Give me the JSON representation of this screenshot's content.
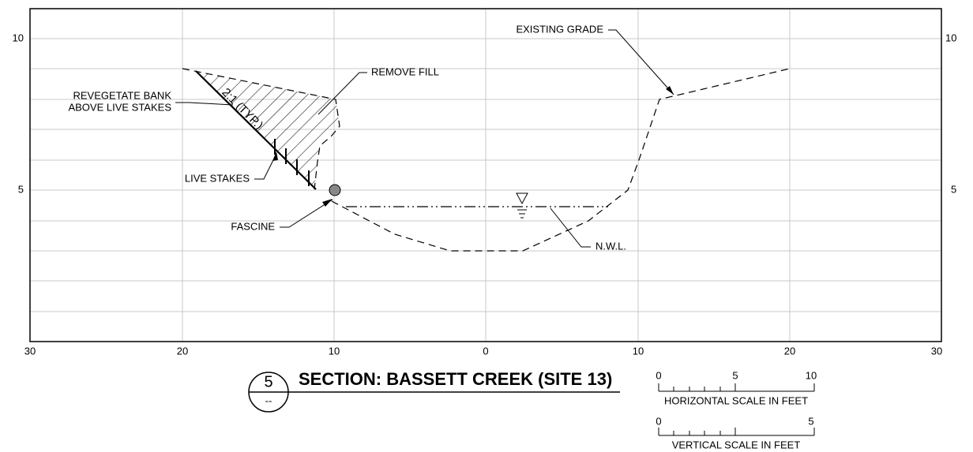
{
  "x_axis_labels": [
    30,
    20,
    10,
    0,
    10,
    20,
    30
  ],
  "y_axis_labels_left": [
    10,
    5
  ],
  "y_axis_labels_right": [
    10,
    5
  ],
  "annotations": {
    "existing_grade": "EXISTING GRADE",
    "remove_fill": "REMOVE FILL",
    "revegetate": [
      "REVEGETATE BANK",
      "ABOVE LIVE STAKES"
    ],
    "slope": "2:1 (TYP.)",
    "live_stakes": "LIVE STAKES",
    "fascine": "FASCINE",
    "nwl": "N.W.L."
  },
  "title": {
    "number": "5",
    "sheet": "--",
    "text": "SECTION: BASSETT CREEK (SITE 13)"
  },
  "horizontal_scale": {
    "labels": [
      "0",
      "5",
      "10"
    ],
    "caption": "HORIZONTAL SCALE IN FEET"
  },
  "vertical_scale": {
    "labels": [
      "0",
      "5"
    ],
    "caption": "VERTICAL SCALE IN FEET"
  }
}
